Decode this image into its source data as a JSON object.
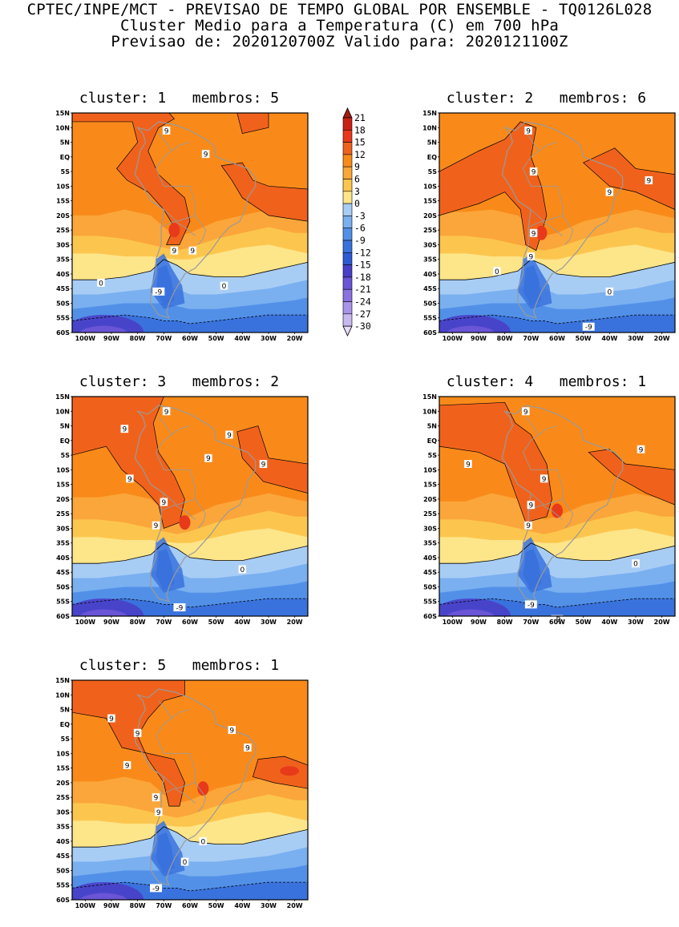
{
  "header": {
    "line1": "CPTEC/INPE/MCT - PREVISAO DE TEMPO GLOBAL POR ENSEMBLE - TQ0126L028",
    "line2": "Cluster Medio para a Temperatura (C) em 700 hPa",
    "line3": "Previsao de: 2020120700Z   Valido para: 2020121100Z"
  },
  "axes": {
    "lat_labels": [
      "15N",
      "10N",
      "5N",
      "EQ",
      "5S",
      "10S",
      "15S",
      "20S",
      "25S",
      "30S",
      "35S",
      "40S",
      "45S",
      "50S",
      "55S",
      "60S"
    ],
    "lon_labels": [
      "100W",
      "90W",
      "80W",
      "70W",
      "60W",
      "50W",
      "40W",
      "30W",
      "20W"
    ]
  },
  "colorbar": {
    "levels": [
      "21",
      "18",
      "15",
      "12",
      "9",
      "6",
      "3",
      "0",
      "-3",
      "-6",
      "-9",
      "-12",
      "-15",
      "-18",
      "-21",
      "-24",
      "-27",
      "-30"
    ],
    "colors": [
      "#a31a14",
      "#c92014",
      "#e83a1a",
      "#f0621c",
      "#f98a1a",
      "#fba63a",
      "#fcc64e",
      "#fde58a",
      "#a8cdf5",
      "#7ab0f0",
      "#5290e8",
      "#3a72dd",
      "#2f5ad4",
      "#4a3fc8",
      "#6a55d6",
      "#8a72e0",
      "#a894e8",
      "#c8b8f0",
      "#e6ddf8"
    ]
  },
  "clusters": [
    {
      "label": "cluster: 1   membros: 5",
      "contours": [
        "9",
        "9",
        "9",
        "9",
        "0",
        "0",
        "-9"
      ]
    },
    {
      "label": "cluster: 2   membros: 6",
      "contours": [
        "9",
        "9",
        "9",
        "9",
        "9",
        "9",
        "0",
        "0",
        "-9"
      ]
    },
    {
      "label": "cluster: 3   membros: 2",
      "contours": [
        "9",
        "9",
        "9",
        "9",
        "9",
        "9",
        "9",
        "9",
        "0",
        "-9"
      ]
    },
    {
      "label": "cluster: 4   membros: 1",
      "contours": [
        "9",
        "9",
        "9",
        "9",
        "9",
        "9",
        "0",
        "-9",
        "-9"
      ]
    },
    {
      "label": "cluster: 5   membros: 1",
      "contours": [
        "9",
        "9",
        "9",
        "0",
        "9",
        "9",
        "9",
        "9",
        "0",
        "-9"
      ]
    }
  ]
}
